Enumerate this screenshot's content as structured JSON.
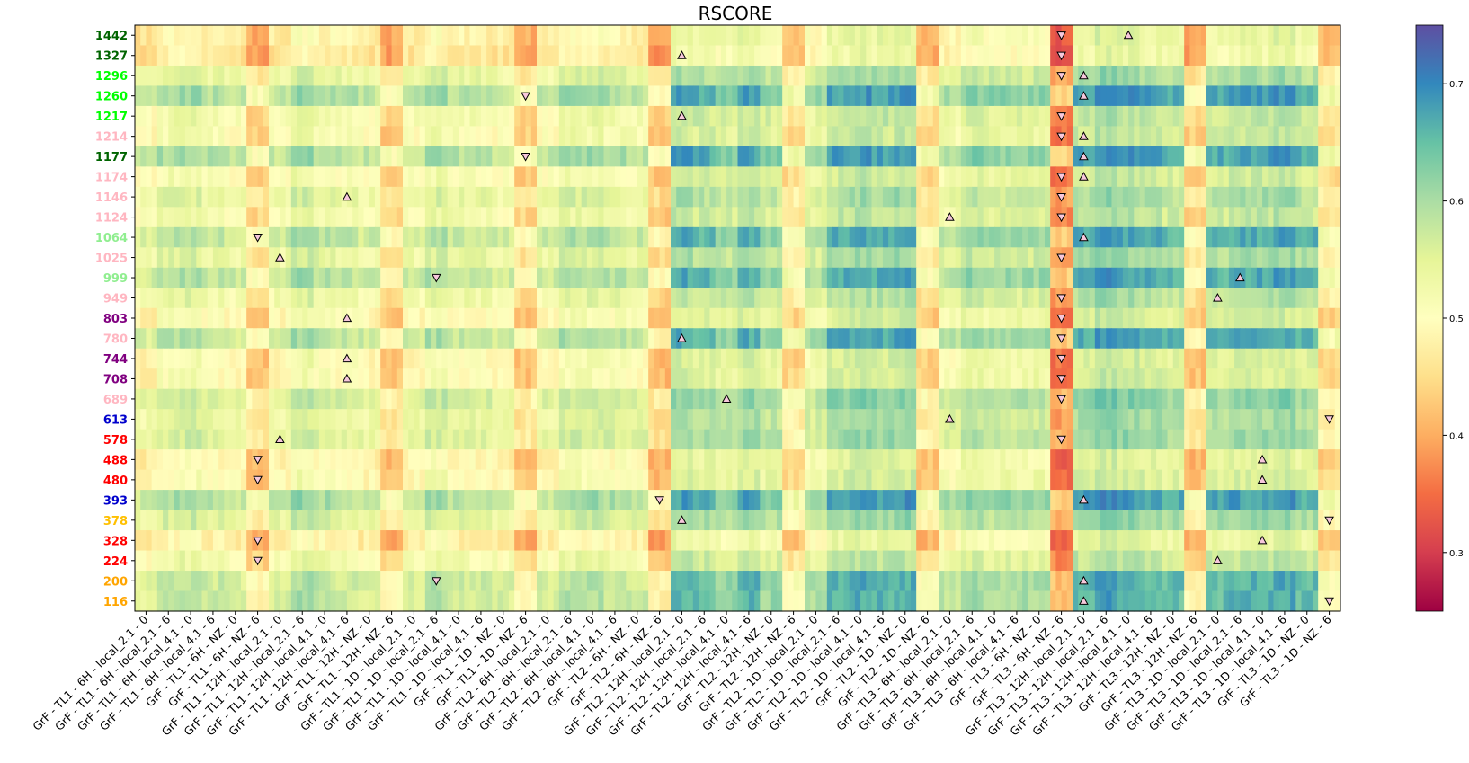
{
  "chart_data": {
    "type": "heatmap",
    "title": "RSCORE",
    "colormap": "Spectral",
    "colorbar": {
      "range": [
        0.25,
        0.75
      ],
      "ticks": [
        0.3,
        0.4,
        0.5,
        0.6,
        0.7
      ],
      "tick_labels": [
        "0.3",
        "0.4",
        "0.5",
        "0.6",
        "0.7"
      ]
    },
    "rows": [
      "1442",
      "1327",
      "1296",
      "1260",
      "1217",
      "1214",
      "1177",
      "1174",
      "1146",
      "1124",
      "1064",
      "1025",
      "999",
      "949",
      "803",
      "780",
      "744",
      "708",
      "689",
      "613",
      "578",
      "488",
      "480",
      "393",
      "378",
      "328",
      "224",
      "200",
      "116"
    ],
    "row_colors": [
      "#006400",
      "#006400",
      "#00ff00",
      "#00ff00",
      "#00ff00",
      "#ffb6c1",
      "#006400",
      "#ffb6c1",
      "#ffb6c1",
      "#ffb6c1",
      "#90ee90",
      "#ffb6c1",
      "#90ee90",
      "#ffb6c1",
      "#800080",
      "#ffb6c1",
      "#800080",
      "#800080",
      "#ffb6c1",
      "#0000cd",
      "#ff0000",
      "#ff0000",
      "#ff0000",
      "#0000cd",
      "#ffc000",
      "#ff0000",
      "#ff0000",
      "#ffa500",
      "#ffa500"
    ],
    "column_tick_labels": [
      "GrF - TL1 - 6H - local_2.1 - 0",
      "GrF - TL1 - 6H - local_2.1 - 6",
      "GrF - TL1 - 6H - local_4.1 - 0",
      "GrF - TL1 - 6H - local_4.1 - 6",
      "GrF - TL1 - 6H - NZ - 0",
      "GrF - TL1 - 6H - NZ - 6",
      "GrF - TL1 - 12H - local_2.1 - 0",
      "GrF - TL1 - 12H - local_2.1 - 6",
      "GrF - TL1 - 12H - local_4.1 - 0",
      "GrF - TL1 - 12H - local_4.1 - 6",
      "GrF - TL1 - 12H - NZ - 0",
      "GrF - TL1 - 12H - NZ - 6",
      "GrF - TL1 - 1D - local_2.1 - 0",
      "GrF - TL1 - 1D - local_2.1 - 6",
      "GrF - TL1 - 1D - local_4.1 - 0",
      "GrF - TL1 - 1D - local_4.1 - 6",
      "GrF - TL1 - 1D - NZ - 0",
      "GrF - TL1 - 1D - NZ - 6",
      "GrF - TL2 - 6H - local_2.1 - 0",
      "GrF - TL2 - 6H - local_2.1 - 6",
      "GrF - TL2 - 6H - local_4.1 - 0",
      "GrF - TL2 - 6H - local_4.1 - 6",
      "GrF - TL2 - 6H - NZ - 0",
      "GrF - TL2 - 6H - NZ - 6",
      "GrF - TL2 - 12H - local_2.1 - 0",
      "GrF - TL2 - 12H - local_2.1 - 6",
      "GrF - TL2 - 12H - local_4.1 - 0",
      "GrF - TL2 - 12H - local_4.1 - 6",
      "GrF - TL2 - 12H - NZ - 0",
      "GrF - TL2 - 12H - NZ - 6",
      "GrF - TL2 - 1D - local_2.1 - 0",
      "GrF - TL2 - 1D - local_2.1 - 6",
      "GrF - TL2 - 1D - local_4.1 - 0",
      "GrF - TL2 - 1D - local_4.1 - 6",
      "GrF - TL2 - 1D - NZ - 0",
      "GrF - TL2 - 1D - NZ - 6",
      "GrF - TL3 - 6H - local_2.1 - 0",
      "GrF - TL3 - 6H - local_2.1 - 6",
      "GrF - TL3 - 6H - local_4.1 - 0",
      "GrF - TL3 - 6H - local_4.1 - 6",
      "GrF - TL3 - 6H - NZ - 0",
      "GrF - TL3 - 6H - NZ - 6",
      "GrF - TL3 - 12H - local_2.1 - 0",
      "GrF - TL3 - 12H - local_2.1 - 6",
      "GrF - TL3 - 12H - local_4.1 - 0",
      "GrF - TL3 - 12H - local_4.1 - 6",
      "GrF - TL3 - 12H - NZ - 0",
      "GrF - TL3 - 12H - NZ - 6",
      "GrF - TL3 - 1D - local_2.1 - 0",
      "GrF - TL3 - 1D - local_2.1 - 6",
      "GrF - TL3 - 1D - local_4.1 - 0",
      "GrF - TL3 - 1D - local_4.1 - 6",
      "GrF - TL3 - 1D - NZ - 0",
      "GrF - TL3 - 1D - NZ - 6"
    ],
    "subcolumns_per_group": 4,
    "row_effects": [
      -0.04,
      -0.05,
      0.02,
      0.07,
      0.0,
      -0.01,
      0.07,
      -0.01,
      0.02,
      0.0,
      0.06,
      0.02,
      0.06,
      0.01,
      -0.02,
      0.06,
      -0.02,
      -0.02,
      0.04,
      0.02,
      0.03,
      -0.03,
      -0.02,
      0.07,
      0.03,
      -0.04,
      0.0,
      0.05,
      0.05
    ],
    "column_effects": [
      -0.02,
      0.01,
      0.02,
      0.0,
      -0.01,
      -0.08,
      -0.01,
      0.03,
      0.01,
      0.0,
      -0.01,
      -0.08,
      -0.01,
      0.02,
      0.0,
      0.0,
      -0.01,
      -0.08,
      -0.01,
      0.02,
      0.02,
      0.01,
      0.0,
      -0.09,
      0.06,
      0.05,
      0.04,
      0.06,
      0.04,
      -0.06,
      0.02,
      0.06,
      0.07,
      0.06,
      0.07,
      -0.07,
      0.01,
      0.04,
      0.03,
      0.03,
      0.03,
      -0.15,
      0.06,
      0.08,
      0.07,
      0.06,
      0.05,
      -0.08,
      0.05,
      0.06,
      0.06,
      0.07,
      0.05,
      -0.06
    ],
    "markers": [
      {
        "row": "1442",
        "col": "GrF - TL3 - 6H - NZ - 6",
        "type": "down"
      },
      {
        "row": "1442",
        "col": "GrF - TL3 - 12H - local_4.1 - 0",
        "type": "up"
      },
      {
        "row": "1327",
        "col": "GrF - TL2 - 12H - local_2.1 - 0",
        "type": "up"
      },
      {
        "row": "1327",
        "col": "GrF - TL3 - 6H - NZ - 6",
        "type": "down"
      },
      {
        "row": "1296",
        "col": "GrF - TL3 - 6H - NZ - 6",
        "type": "down"
      },
      {
        "row": "1296",
        "col": "GrF - TL3 - 12H - local_2.1 - 0",
        "type": "up"
      },
      {
        "row": "1260",
        "col": "GrF - TL1 - 1D - NZ - 6",
        "type": "down"
      },
      {
        "row": "1260",
        "col": "GrF - TL3 - 12H - local_2.1 - 0",
        "type": "up"
      },
      {
        "row": "1217",
        "col": "GrF - TL2 - 12H - local_2.1 - 0",
        "type": "up"
      },
      {
        "row": "1217",
        "col": "GrF - TL3 - 6H - NZ - 6",
        "type": "down"
      },
      {
        "row": "1214",
        "col": "GrF - TL3 - 6H - NZ - 6",
        "type": "down"
      },
      {
        "row": "1214",
        "col": "GrF - TL3 - 12H - local_2.1 - 0",
        "type": "up"
      },
      {
        "row": "1177",
        "col": "GrF - TL1 - 1D - NZ - 6",
        "type": "down"
      },
      {
        "row": "1177",
        "col": "GrF - TL3 - 12H - local_2.1 - 0",
        "type": "up"
      },
      {
        "row": "1174",
        "col": "GrF - TL3 - 6H - NZ - 6",
        "type": "down"
      },
      {
        "row": "1174",
        "col": "GrF - TL3 - 12H - local_2.1 - 0",
        "type": "up"
      },
      {
        "row": "1146",
        "col": "GrF - TL1 - 12H - local_4.1 - 6",
        "type": "up"
      },
      {
        "row": "1146",
        "col": "GrF - TL3 - 6H - NZ - 6",
        "type": "down"
      },
      {
        "row": "1124",
        "col": "GrF - TL3 - 6H - local_2.1 - 0",
        "type": "up"
      },
      {
        "row": "1124",
        "col": "GrF - TL3 - 6H - NZ - 6",
        "type": "down"
      },
      {
        "row": "1064",
        "col": "GrF - TL1 - 6H - NZ - 6",
        "type": "down"
      },
      {
        "row": "1064",
        "col": "GrF - TL3 - 12H - local_2.1 - 0",
        "type": "up"
      },
      {
        "row": "1025",
        "col": "GrF - TL1 - 12H - local_2.1 - 0",
        "type": "up"
      },
      {
        "row": "1025",
        "col": "GrF - TL3 - 6H - NZ - 6",
        "type": "down"
      },
      {
        "row": "999",
        "col": "GrF - TL1 - 1D - local_2.1 - 6",
        "type": "down"
      },
      {
        "row": "999",
        "col": "GrF - TL3 - 1D - local_2.1 - 6",
        "type": "up"
      },
      {
        "row": "949",
        "col": "GrF - TL3 - 6H - NZ - 6",
        "type": "down"
      },
      {
        "row": "949",
        "col": "GrF - TL3 - 1D - local_2.1 - 0",
        "type": "up"
      },
      {
        "row": "803",
        "col": "GrF - TL1 - 12H - local_4.1 - 6",
        "type": "up"
      },
      {
        "row": "803",
        "col": "GrF - TL3 - 6H - NZ - 6",
        "type": "down"
      },
      {
        "row": "780",
        "col": "GrF - TL2 - 12H - local_2.1 - 0",
        "type": "up"
      },
      {
        "row": "780",
        "col": "GrF - TL3 - 6H - NZ - 6",
        "type": "down"
      },
      {
        "row": "744",
        "col": "GrF - TL1 - 12H - local_4.1 - 6",
        "type": "up"
      },
      {
        "row": "744",
        "col": "GrF - TL3 - 6H - NZ - 6",
        "type": "down"
      },
      {
        "row": "708",
        "col": "GrF - TL1 - 12H - local_4.1 - 6",
        "type": "up"
      },
      {
        "row": "708",
        "col": "GrF - TL3 - 6H - NZ - 6",
        "type": "down"
      },
      {
        "row": "689",
        "col": "GrF - TL2 - 12H - local_4.1 - 0",
        "type": "up"
      },
      {
        "row": "689",
        "col": "GrF - TL3 - 6H - NZ - 6",
        "type": "down"
      },
      {
        "row": "613",
        "col": "GrF - TL3 - 6H - local_2.1 - 0",
        "type": "up"
      },
      {
        "row": "613",
        "col": "GrF - TL3 - 1D - NZ - 6",
        "type": "down"
      },
      {
        "row": "578",
        "col": "GrF - TL1 - 12H - local_2.1 - 0",
        "type": "up"
      },
      {
        "row": "578",
        "col": "GrF - TL3 - 6H - NZ - 6",
        "type": "down"
      },
      {
        "row": "488",
        "col": "GrF - TL1 - 6H - NZ - 6",
        "type": "down"
      },
      {
        "row": "488",
        "col": "GrF - TL3 - 1D - local_4.1 - 0",
        "type": "up"
      },
      {
        "row": "480",
        "col": "GrF - TL1 - 6H - NZ - 6",
        "type": "down"
      },
      {
        "row": "480",
        "col": "GrF - TL3 - 1D - local_4.1 - 0",
        "type": "up"
      },
      {
        "row": "393",
        "col": "GrF - TL2 - 6H - NZ - 6",
        "type": "down"
      },
      {
        "row": "393",
        "col": "GrF - TL3 - 12H - local_2.1 - 0",
        "type": "up"
      },
      {
        "row": "378",
        "col": "GrF - TL2 - 12H - local_2.1 - 0",
        "type": "up"
      },
      {
        "row": "378",
        "col": "GrF - TL3 - 1D - NZ - 6",
        "type": "down"
      },
      {
        "row": "328",
        "col": "GrF - TL1 - 6H - NZ - 6",
        "type": "down"
      },
      {
        "row": "328",
        "col": "GrF - TL3 - 1D - local_4.1 - 0",
        "type": "up"
      },
      {
        "row": "224",
        "col": "GrF - TL1 - 6H - NZ - 6",
        "type": "down"
      },
      {
        "row": "224",
        "col": "GrF - TL3 - 1D - local_2.1 - 0",
        "type": "up"
      },
      {
        "row": "200",
        "col": "GrF - TL1 - 1D - local_2.1 - 6",
        "type": "down"
      },
      {
        "row": "200",
        "col": "GrF - TL3 - 12H - local_2.1 - 0",
        "type": "up"
      },
      {
        "row": "116",
        "col": "GrF - TL3 - 12H - local_2.1 - 0",
        "type": "up"
      },
      {
        "row": "116",
        "col": "GrF - TL3 - 1D - NZ - 6",
        "type": "down"
      }
    ]
  }
}
